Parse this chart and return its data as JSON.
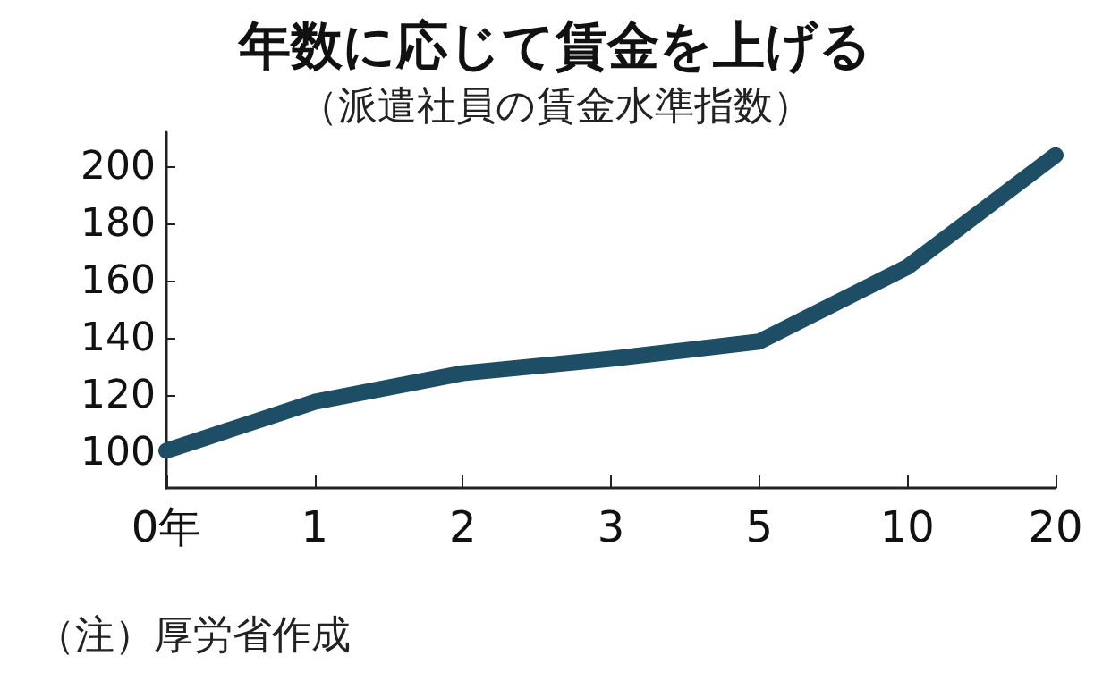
{
  "chart_data": {
    "type": "line",
    "title": "年数に応じて賃金を上げる",
    "subtitle": "（派遣社員の賃金水準指数）",
    "annotations": [
      "（注）厚労省作成"
    ],
    "categories": [
      "0年",
      "1",
      "2",
      "3",
      "5",
      "10",
      "20"
    ],
    "series": [
      {
        "color": "#1e4d66",
        "values": [
          101,
          118,
          128,
          133,
          139,
          165,
          204
        ]
      }
    ],
    "ylim": [
      88,
      212
    ],
    "yticks": [
      100,
      120,
      140,
      160,
      180,
      200
    ],
    "grid": false,
    "line_style": "solid"
  }
}
